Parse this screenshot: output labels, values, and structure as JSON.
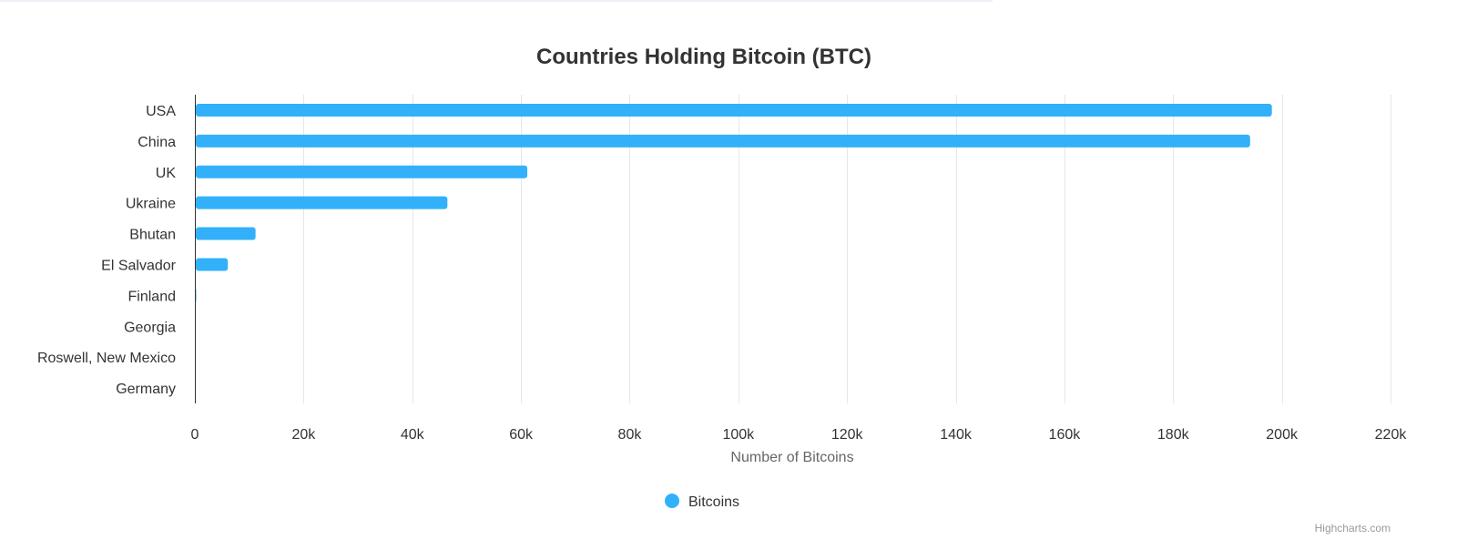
{
  "chart_data": {
    "type": "bar",
    "orientation": "horizontal",
    "title": "Countries Holding Bitcoin (BTC)",
    "categories": [
      "USA",
      "China",
      "UK",
      "Ukraine",
      "Bhutan",
      "El Salvador",
      "Finland",
      "Georgia",
      "Roswell, New Mexico",
      "Germany"
    ],
    "series": [
      {
        "name": "Bitcoins",
        "values": [
          198000,
          194000,
          61000,
          46300,
          11000,
          5900,
          90,
          66,
          0.5,
          0
        ],
        "color": "#32b1fa"
      }
    ],
    "xlabel": "Number of Bitcoins",
    "ylabel": "",
    "xlim": [
      0,
      220000
    ],
    "ticks": [
      {
        "value": 0,
        "label": "0"
      },
      {
        "value": 20000,
        "label": "20k"
      },
      {
        "value": 40000,
        "label": "40k"
      },
      {
        "value": 60000,
        "label": "60k"
      },
      {
        "value": 80000,
        "label": "80k"
      },
      {
        "value": 100000,
        "label": "100k"
      },
      {
        "value": 120000,
        "label": "120k"
      },
      {
        "value": 140000,
        "label": "140k"
      },
      {
        "value": 160000,
        "label": "160k"
      },
      {
        "value": 180000,
        "label": "180k"
      },
      {
        "value": 200000,
        "label": "200k"
      },
      {
        "value": 220000,
        "label": "220k"
      }
    ],
    "grid": true,
    "legend": "bottom-center"
  },
  "credits": "Highcharts.com"
}
